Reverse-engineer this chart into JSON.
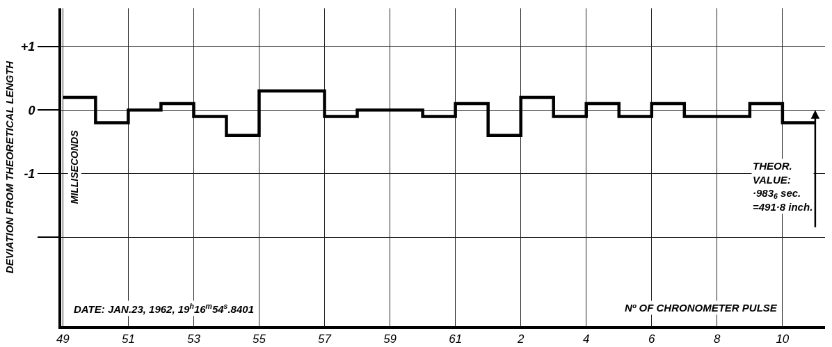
{
  "chart_data": {
    "type": "step",
    "ylabel": "DEVIATION FROM THEORETICAL LENGTH",
    "xlabel": "Nº OF CHRONOMETER PULSE",
    "annotations": [
      "MILLISECONDS",
      "DATE: JAN.23, 1962, 19$^{h}$16$^{m}$54$^{s}$.8401",
      "THEOR.\nVALUE:\n·983$_{6}$ sec.\n=491·8 inch."
    ],
    "categories": [
      "49",
      null,
      "51",
      null,
      "53",
      null,
      "55",
      null,
      "57",
      null,
      "59",
      null,
      "61",
      null,
      "2",
      null,
      "4",
      null,
      "6",
      null,
      "8",
      null,
      "10",
      null
    ],
    "values": [
      0.2,
      -0.2,
      0,
      0.1,
      -0.1,
      -0.4,
      0.3,
      0.3,
      -0.1,
      0,
      0,
      -0.1,
      0.1,
      -0.4,
      0.2,
      -0.1,
      0.1,
      -0.1,
      0.1,
      -0.1,
      -0.1,
      0.1,
      -0.2,
      -0.2
    ],
    "color": "#000000",
    "ylim": [
      -3.4,
      1.6
    ],
    "yticks": [
      {
        "value": 1,
        "label": "+1"
      },
      0,
      -1,
      {
        "value": -2,
        "label": null
      }
    ],
    "grid": true
  }
}
